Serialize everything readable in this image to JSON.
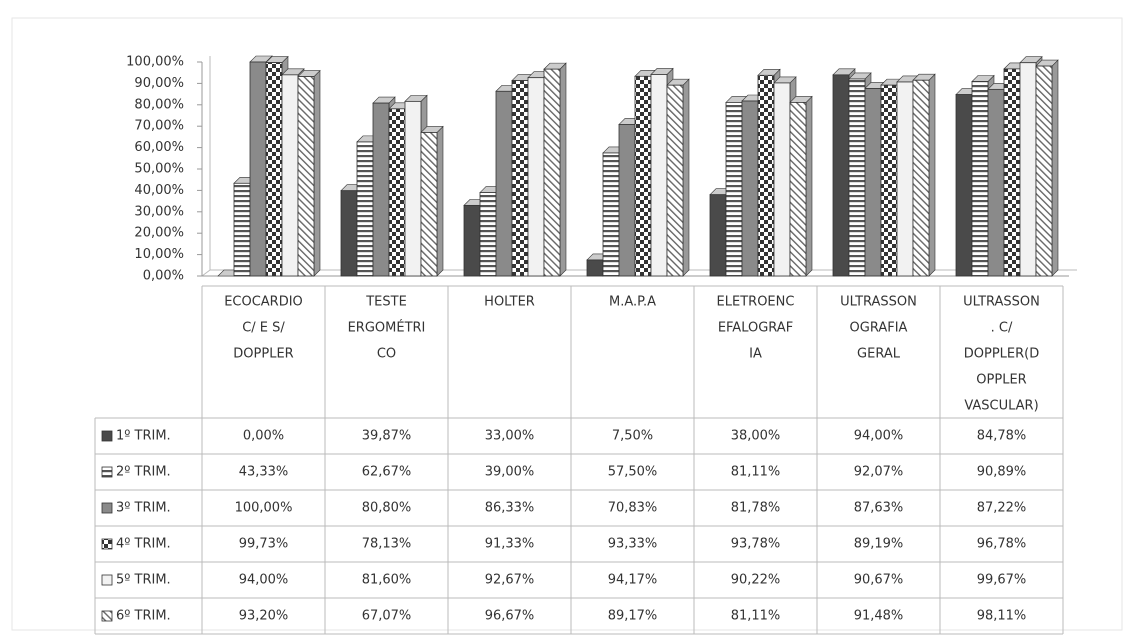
{
  "chart_data": {
    "type": "bar",
    "categories": [
      [
        "ECOCARDIO",
        "C/ E S/",
        "DOPPLER"
      ],
      [
        "TESTE",
        "ERGOMÉTRI",
        "CO"
      ],
      [
        "HOLTER"
      ],
      [
        "M.A.P.A"
      ],
      [
        "ELETROENC",
        "EFALOGRAF",
        "IA"
      ],
      [
        "ULTRASSON",
        "OGRAFIA",
        "GERAL"
      ],
      [
        "ULTRASSON",
        ". C/",
        "DOPPLER(D",
        "OPPLER",
        "VASCULAR)"
      ]
    ],
    "series": [
      {
        "name": "1º TRIM.",
        "color": "#4a4a4a",
        "pattern": "solid",
        "values": [
          0,
          39.87,
          33,
          7.5,
          38,
          94,
          84.78
        ],
        "value_labels": [
          "0,00%",
          "39,87%",
          "33,00%",
          "7,50%",
          "38,00%",
          "94,00%",
          "84,78%"
        ]
      },
      {
        "name": "2º TRIM.",
        "color": "#555555",
        "pattern": "hstripes",
        "values": [
          43.33,
          62.67,
          39,
          57.5,
          81.11,
          92.07,
          90.89
        ],
        "value_labels": [
          "43,33%",
          "62,67%",
          "39,00%",
          "57,50%",
          "81,11%",
          "92,07%",
          "90,89%"
        ]
      },
      {
        "name": "3º TRIM.",
        "color": "#8a8a8a",
        "pattern": "solid",
        "values": [
          100,
          80.8,
          86.33,
          70.83,
          81.78,
          87.63,
          87.22
        ],
        "value_labels": [
          "100,00%",
          "80,80%",
          "86,33%",
          "70,83%",
          "81,78%",
          "87,63%",
          "87,22%"
        ]
      },
      {
        "name": "4º TRIM.",
        "color": "#333333",
        "pattern": "checker",
        "values": [
          99.73,
          78.13,
          91.33,
          93.33,
          93.78,
          89.19,
          96.78
        ],
        "value_labels": [
          "99,73%",
          "78,13%",
          "91,33%",
          "93,33%",
          "93,78%",
          "89,19%",
          "96,78%"
        ]
      },
      {
        "name": "5º TRIM.",
        "color": "#f2f2f2",
        "pattern": "none",
        "values": [
          94,
          81.6,
          92.67,
          94.17,
          90.22,
          90.67,
          99.67
        ],
        "value_labels": [
          "94,00%",
          "81,60%",
          "92,67%",
          "94,17%",
          "90,22%",
          "90,67%",
          "99,67%"
        ]
      },
      {
        "name": "6º TRIM.",
        "color": "#666666",
        "pattern": "diagonal",
        "values": [
          93.2,
          67.07,
          96.67,
          89.17,
          81.11,
          91.48,
          98.11
        ],
        "value_labels": [
          "93,20%",
          "67,07%",
          "96,67%",
          "89,17%",
          "81,11%",
          "91,48%",
          "98,11%"
        ]
      }
    ],
    "ylim": [
      0,
      100
    ],
    "yticks": [
      {
        "value": 0,
        "label": "0,00%"
      },
      {
        "value": 10,
        "label": "10,00%"
      },
      {
        "value": 20,
        "label": "20,00%"
      },
      {
        "value": 30,
        "label": "30,00%"
      },
      {
        "value": 40,
        "label": "40,00%"
      },
      {
        "value": 50,
        "label": "50,00%"
      },
      {
        "value": 60,
        "label": "60,00%"
      },
      {
        "value": 70,
        "label": "70,00%"
      },
      {
        "value": 80,
        "label": "80,00%"
      },
      {
        "value": 90,
        "label": "90,00%"
      },
      {
        "value": 100,
        "label": "100,00%"
      }
    ],
    "grid": false
  }
}
